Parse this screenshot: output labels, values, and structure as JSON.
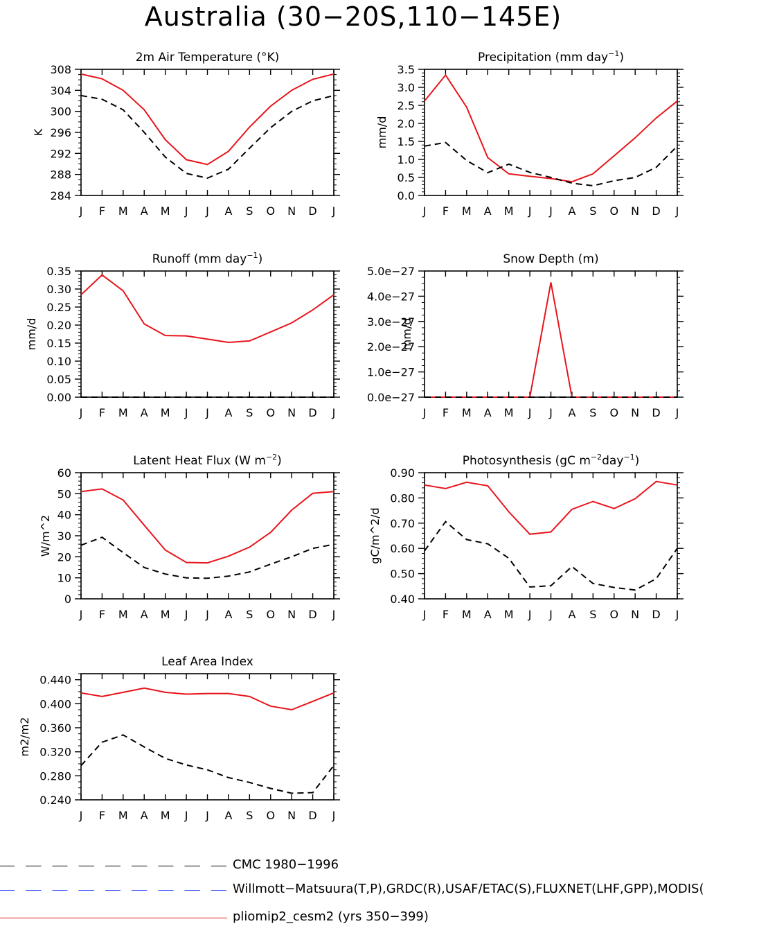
{
  "page_title": "Australia (30−20S,110−145E)",
  "colors": {
    "model": "#e8141b",
    "obs": "#000000",
    "obs_alt": "#1f3cff",
    "axis": "#000000"
  },
  "months": [
    "J",
    "F",
    "M",
    "A",
    "M",
    "J",
    "J",
    "A",
    "S",
    "O",
    "N",
    "D",
    "J"
  ],
  "chart_data": [
    {
      "id": "temperature",
      "type": "line",
      "title": "2m Air Temperature (°K)",
      "title_parts": [
        {
          "t": "2m Air Temperature (°K)"
        }
      ],
      "ylabel": "K",
      "ylim": [
        284,
        308
      ],
      "yticks": [
        284,
        288,
        292,
        296,
        300,
        304,
        308
      ],
      "ytick_labels": [
        "284",
        "288",
        "292",
        "296",
        "300",
        "304",
        "308"
      ],
      "minor_step": 1,
      "categories": [
        "J",
        "F",
        "M",
        "A",
        "M",
        "J",
        "J",
        "A",
        "S",
        "O",
        "N",
        "D",
        "J"
      ],
      "series": [
        {
          "name": "pliomip2_cesm2 (yrs 350-399)",
          "style": "solid",
          "values": [
            307.1,
            306.2,
            304.0,
            300.3,
            294.6,
            290.8,
            289.9,
            292.4,
            297.0,
            301.0,
            304.0,
            306.1,
            307.1
          ]
        },
        {
          "name": "CMC 1980-1996",
          "style": "dashed",
          "values": [
            303.0,
            302.3,
            300.3,
            296.0,
            291.3,
            288.2,
            287.3,
            289.0,
            293.0,
            296.9,
            300.0,
            302.0,
            303.0
          ]
        }
      ]
    },
    {
      "id": "precipitation",
      "type": "line",
      "title": "Precipitation (mm day-1)",
      "title_parts": [
        {
          "t": "Precipitation (mm day"
        },
        {
          "t": "−1",
          "sup": true
        },
        {
          "t": ")"
        }
      ],
      "ylabel": "mm/d",
      "ylim": [
        0,
        3.5
      ],
      "yticks": [
        0,
        0.5,
        1.0,
        1.5,
        2.0,
        2.5,
        3.0,
        3.5
      ],
      "ytick_labels": [
        "0.0",
        "0.5",
        "1.0",
        "1.5",
        "2.0",
        "2.5",
        "3.0",
        "3.5"
      ],
      "minor_step": 0.1,
      "categories": [
        "J",
        "F",
        "M",
        "A",
        "M",
        "J",
        "J",
        "A",
        "S",
        "O",
        "N",
        "D",
        "J"
      ],
      "series": [
        {
          "name": "pliomip2_cesm2 (yrs 350-399)",
          "style": "solid",
          "values": [
            2.62,
            3.34,
            2.45,
            1.05,
            0.6,
            0.53,
            0.47,
            0.38,
            0.6,
            1.1,
            1.6,
            2.15,
            2.62
          ]
        },
        {
          "name": "Willmott-Matsuura",
          "style": "dashed",
          "values": [
            1.37,
            1.47,
            0.97,
            0.63,
            0.87,
            0.64,
            0.5,
            0.34,
            0.27,
            0.41,
            0.5,
            0.78,
            1.37
          ]
        }
      ]
    },
    {
      "id": "runoff",
      "type": "line",
      "title": "Runoff (mm day-1)",
      "title_parts": [
        {
          "t": "Runoff (mm day"
        },
        {
          "t": "−1",
          "sup": true
        },
        {
          "t": ")"
        }
      ],
      "ylabel": "mm/d",
      "ylim": [
        0,
        0.35
      ],
      "yticks": [
        0,
        0.05,
        0.1,
        0.15,
        0.2,
        0.25,
        0.3,
        0.35
      ],
      "ytick_labels": [
        "0.00",
        "0.05",
        "0.10",
        "0.15",
        "0.20",
        "0.25",
        "0.30",
        "0.35"
      ],
      "minor_step": 0.01,
      "categories": [
        "J",
        "F",
        "M",
        "A",
        "M",
        "J",
        "J",
        "A",
        "S",
        "O",
        "N",
        "D",
        "J"
      ],
      "series": [
        {
          "name": "pliomip2_cesm2 (yrs 350-399)",
          "style": "solid",
          "values": [
            0.284,
            0.339,
            0.295,
            0.203,
            0.171,
            0.17,
            0.161,
            0.152,
            0.156,
            0.181,
            0.206,
            0.242,
            0.284
          ]
        },
        {
          "name": "GRDC",
          "style": "dashed",
          "values": [
            0,
            0,
            0,
            0,
            0,
            0,
            0,
            0,
            0,
            0,
            0,
            0,
            0
          ]
        }
      ]
    },
    {
      "id": "snow",
      "type": "line",
      "title": "Snow Depth (m)",
      "title_parts": [
        {
          "t": "Snow Depth (m)"
        }
      ],
      "ylabel": "mm/d",
      "ylim": [
        0,
        5e-27
      ],
      "yticks": [
        0,
        1e-27,
        2e-27,
        3e-27,
        4e-27,
        5e-27
      ],
      "ytick_labels": [
        "0.0e−27",
        "1.0e−27",
        "2.0e−27",
        "3.0e−27",
        "4.0e−27",
        "5.0e−27"
      ],
      "minor_step": 2.5e-28,
      "categories": [
        "J",
        "F",
        "M",
        "A",
        "M",
        "J",
        "J",
        "A",
        "S",
        "O",
        "N",
        "D",
        "J"
      ],
      "series": [
        {
          "name": "pliomip2_cesm2 (yrs 350-399)",
          "style": "solid",
          "values": [
            0,
            0,
            0,
            0,
            0,
            0,
            4.55e-27,
            0,
            0,
            0,
            0,
            0,
            0
          ]
        },
        {
          "name": "USAF/ETAC",
          "style": "dashed",
          "values": [
            0,
            0,
            0,
            0,
            0,
            0,
            0,
            0,
            0,
            0,
            0,
            0,
            0
          ]
        }
      ]
    },
    {
      "id": "latent_heat",
      "type": "line",
      "title": "Latent Heat Flux (W m-2)",
      "title_parts": [
        {
          "t": "Latent Heat Flux (W m"
        },
        {
          "t": "−2",
          "sup": true
        },
        {
          "t": ")"
        }
      ],
      "ylabel": "W/m^2",
      "ylim": [
        0,
        60
      ],
      "yticks": [
        0,
        10,
        20,
        30,
        40,
        50,
        60
      ],
      "ytick_labels": [
        "0",
        "10",
        "20",
        "30",
        "40",
        "50",
        "60"
      ],
      "minor_step": 2,
      "categories": [
        "J",
        "F",
        "M",
        "A",
        "M",
        "J",
        "J",
        "A",
        "S",
        "O",
        "N",
        "D",
        "J"
      ],
      "series": [
        {
          "name": "pliomip2_cesm2 (yrs 350-399)",
          "style": "solid",
          "values": [
            51.0,
            52.3,
            47.0,
            35.0,
            23.2,
            17.3,
            17.1,
            20.3,
            24.6,
            31.6,
            42.2,
            50.2,
            51.0
          ]
        },
        {
          "name": "FLUXNET",
          "style": "dashed",
          "values": [
            25.5,
            29.3,
            22.0,
            14.9,
            11.8,
            10.0,
            9.8,
            10.8,
            12.8,
            16.5,
            20.0,
            24.0,
            25.9
          ]
        }
      ]
    },
    {
      "id": "photosynthesis",
      "type": "line",
      "title": "Photosynthesis (gC m-2day-1)",
      "title_parts": [
        {
          "t": "Photosynthesis (gC m"
        },
        {
          "t": "−2",
          "sup": true
        },
        {
          "t": "day"
        },
        {
          "t": "−1",
          "sup": true
        },
        {
          "t": ")"
        }
      ],
      "ylabel": "gC/m^2/d",
      "ylim": [
        0.4,
        0.9
      ],
      "yticks": [
        0.4,
        0.5,
        0.6,
        0.7,
        0.8,
        0.9
      ],
      "ytick_labels": [
        "0.40",
        "0.50",
        "0.60",
        "0.70",
        "0.80",
        "0.90"
      ],
      "minor_step": 0.02,
      "categories": [
        "J",
        "F",
        "M",
        "A",
        "M",
        "J",
        "J",
        "A",
        "S",
        "O",
        "N",
        "D",
        "J"
      ],
      "series": [
        {
          "name": "pliomip2_cesm2 (yrs 350-399)",
          "style": "solid",
          "values": [
            0.851,
            0.837,
            0.862,
            0.848,
            0.745,
            0.656,
            0.665,
            0.755,
            0.786,
            0.758,
            0.797,
            0.865,
            0.851
          ]
        },
        {
          "name": "FLUXNET",
          "style": "dashed",
          "values": [
            0.59,
            0.706,
            0.635,
            0.618,
            0.561,
            0.447,
            0.452,
            0.528,
            0.461,
            0.445,
            0.435,
            0.48,
            0.6
          ]
        }
      ]
    },
    {
      "id": "lai",
      "type": "line",
      "title": "Leaf Area Index",
      "title_parts": [
        {
          "t": "Leaf Area Index"
        }
      ],
      "ylabel": "m2/m2",
      "ylim": [
        0.24,
        0.45
      ],
      "yticks": [
        0.24,
        0.28,
        0.32,
        0.36,
        0.4,
        0.44
      ],
      "ytick_labels": [
        "0.240",
        "0.280",
        "0.320",
        "0.360",
        "0.400",
        "0.440"
      ],
      "minor_step": 0.01,
      "categories": [
        "J",
        "F",
        "M",
        "A",
        "M",
        "J",
        "J",
        "A",
        "S",
        "O",
        "N",
        "D",
        "J"
      ],
      "series": [
        {
          "name": "pliomip2_cesm2 (yrs 350-399)",
          "style": "solid",
          "values": [
            0.418,
            0.412,
            0.419,
            0.426,
            0.419,
            0.416,
            0.417,
            0.417,
            0.412,
            0.396,
            0.39,
            0.404,
            0.418
          ]
        },
        {
          "name": "MODIS",
          "style": "dashed",
          "values": [
            0.297,
            0.336,
            0.348,
            0.328,
            0.309,
            0.298,
            0.29,
            0.277,
            0.269,
            0.259,
            0.251,
            0.252,
            0.297
          ]
        }
      ]
    }
  ],
  "legend": [
    {
      "label": "CMC 1980−1996",
      "color": "#000000",
      "style": "dashed"
    },
    {
      "label": "Willmott−Matsuura(T,P),GRDC(R),USAF/ETAC(S),FLUXNET(LHF,GPP),MODIS(",
      "color": "#1f3cff",
      "style": "dashed"
    },
    {
      "label": "pliomip2_cesm2 (yrs 350−399)",
      "color": "#e8141b",
      "style": "solid"
    }
  ]
}
